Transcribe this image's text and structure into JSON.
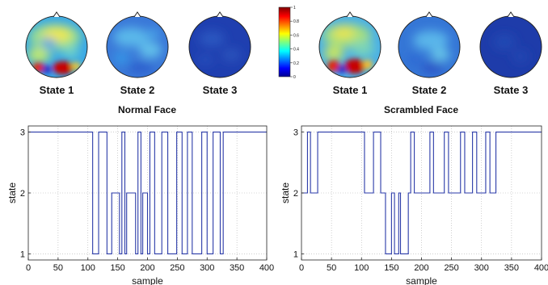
{
  "topomaps": {
    "left": [
      {
        "label": "State 1",
        "pattern": "state1_normal"
      },
      {
        "label": "State 2",
        "pattern": "state2_normal"
      },
      {
        "label": "State 3",
        "pattern": "state3_normal"
      }
    ],
    "right": [
      {
        "label": "State 1",
        "pattern": "state1_scrambled"
      },
      {
        "label": "State 2",
        "pattern": "state2_scrambled"
      },
      {
        "label": "State 3",
        "pattern": "state3_scrambled"
      }
    ]
  },
  "colorbar": {
    "ticks": [
      "1",
      "0.8",
      "0.6",
      "0.4",
      "0.2",
      "0"
    ],
    "colormap": "jet",
    "range": [
      0,
      1
    ]
  },
  "chart_data": [
    {
      "type": "line",
      "title": "Normal Face",
      "xlabel": "sample",
      "ylabel": "state",
      "xlim": [
        0,
        400
      ],
      "ylim": [
        0.9,
        3.1
      ],
      "x_ticks": [
        0,
        50,
        100,
        150,
        200,
        250,
        300,
        350,
        400
      ],
      "y_ticks": [
        1,
        2,
        3
      ],
      "grid": true,
      "line_color": "#2a3aa8",
      "series": [
        {
          "steps": [
            [
              0,
              3
            ],
            [
              108,
              1
            ],
            [
              118,
              3
            ],
            [
              132,
              1
            ],
            [
              140,
              2
            ],
            [
              153,
              1
            ],
            [
              157,
              3
            ],
            [
              162,
              1
            ],
            [
              165,
              2
            ],
            [
              180,
              1
            ],
            [
              184,
              3
            ],
            [
              189,
              1
            ],
            [
              192,
              2
            ],
            [
              200,
              1
            ],
            [
              204,
              3
            ],
            [
              212,
              1
            ],
            [
              224,
              3
            ],
            [
              234,
              1
            ],
            [
              249,
              3
            ],
            [
              258,
              1
            ],
            [
              267,
              3
            ],
            [
              275,
              1
            ],
            [
              291,
              3
            ],
            [
              300,
              1
            ],
            [
              310,
              3
            ],
            [
              322,
              1
            ],
            [
              327,
              3
            ],
            [
              400,
              3
            ]
          ]
        }
      ]
    },
    {
      "type": "line",
      "title": "Scrambled Face",
      "xlabel": "sample",
      "ylabel": "state",
      "xlim": [
        0,
        400
      ],
      "ylim": [
        0.9,
        3.1
      ],
      "x_ticks": [
        0,
        50,
        100,
        150,
        200,
        250,
        300,
        350,
        400
      ],
      "y_ticks": [
        1,
        2,
        3
      ],
      "grid": true,
      "line_color": "#2a3aa8",
      "series": [
        {
          "steps": [
            [
              0,
              2
            ],
            [
              10,
              3
            ],
            [
              15,
              2
            ],
            [
              27,
              3
            ],
            [
              105,
              2
            ],
            [
              120,
              3
            ],
            [
              132,
              2
            ],
            [
              140,
              1
            ],
            [
              150,
              2
            ],
            [
              155,
              1
            ],
            [
              162,
              2
            ],
            [
              165,
              1
            ],
            [
              178,
              2
            ],
            [
              182,
              3
            ],
            [
              188,
              2
            ],
            [
              214,
              3
            ],
            [
              220,
              2
            ],
            [
              238,
              3
            ],
            [
              245,
              2
            ],
            [
              265,
              3
            ],
            [
              272,
              2
            ],
            [
              285,
              3
            ],
            [
              292,
              2
            ],
            [
              307,
              3
            ],
            [
              314,
              2
            ],
            [
              324,
              3
            ],
            [
              400,
              3
            ]
          ]
        }
      ]
    }
  ]
}
